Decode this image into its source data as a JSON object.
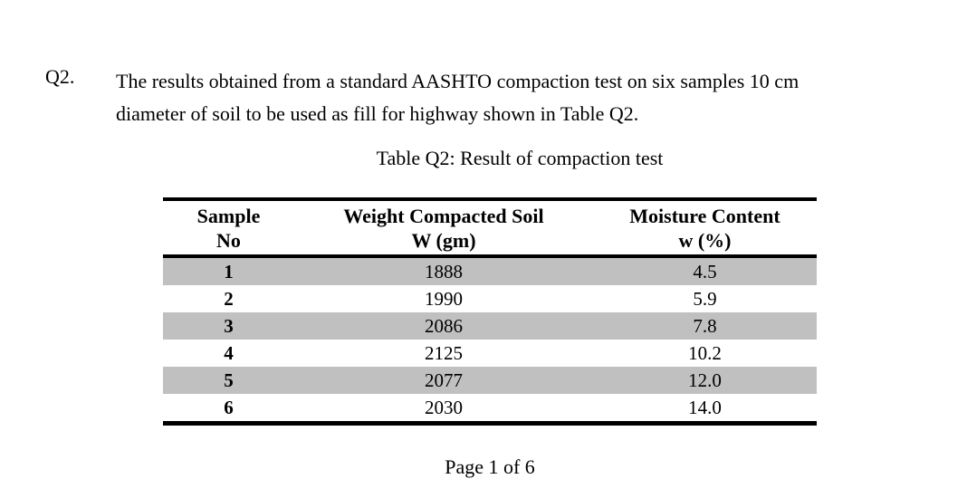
{
  "question": {
    "label": "Q2.",
    "line1": "The results obtained from a standard AASHTO compaction test on six samples 10 cm",
    "line2": "diameter of soil to be used as fill for highway shown in Table Q2."
  },
  "table": {
    "title": "Table Q2: Result of compaction test",
    "columns": [
      {
        "line1": "Sample",
        "line2": "No"
      },
      {
        "line1": "Weight Compacted Soil",
        "line2": "W (gm)"
      },
      {
        "line1": "Moisture Content",
        "line2": "w (%)"
      }
    ],
    "rows": [
      {
        "sample": "1",
        "weight": "1888",
        "moisture": "4.5"
      },
      {
        "sample": "2",
        "weight": "1990",
        "moisture": "5.9"
      },
      {
        "sample": "3",
        "weight": "2086",
        "moisture": "7.8"
      },
      {
        "sample": "4",
        "weight": "2125",
        "moisture": "10.2"
      },
      {
        "sample": "5",
        "weight": "2077",
        "moisture": "12.0"
      },
      {
        "sample": "6",
        "weight": "2030",
        "moisture": "14.0"
      }
    ],
    "row_shade_color": "#c0c0c0",
    "rule_color": "#000000"
  },
  "footer": {
    "page_number": "Page 1 of 6"
  }
}
